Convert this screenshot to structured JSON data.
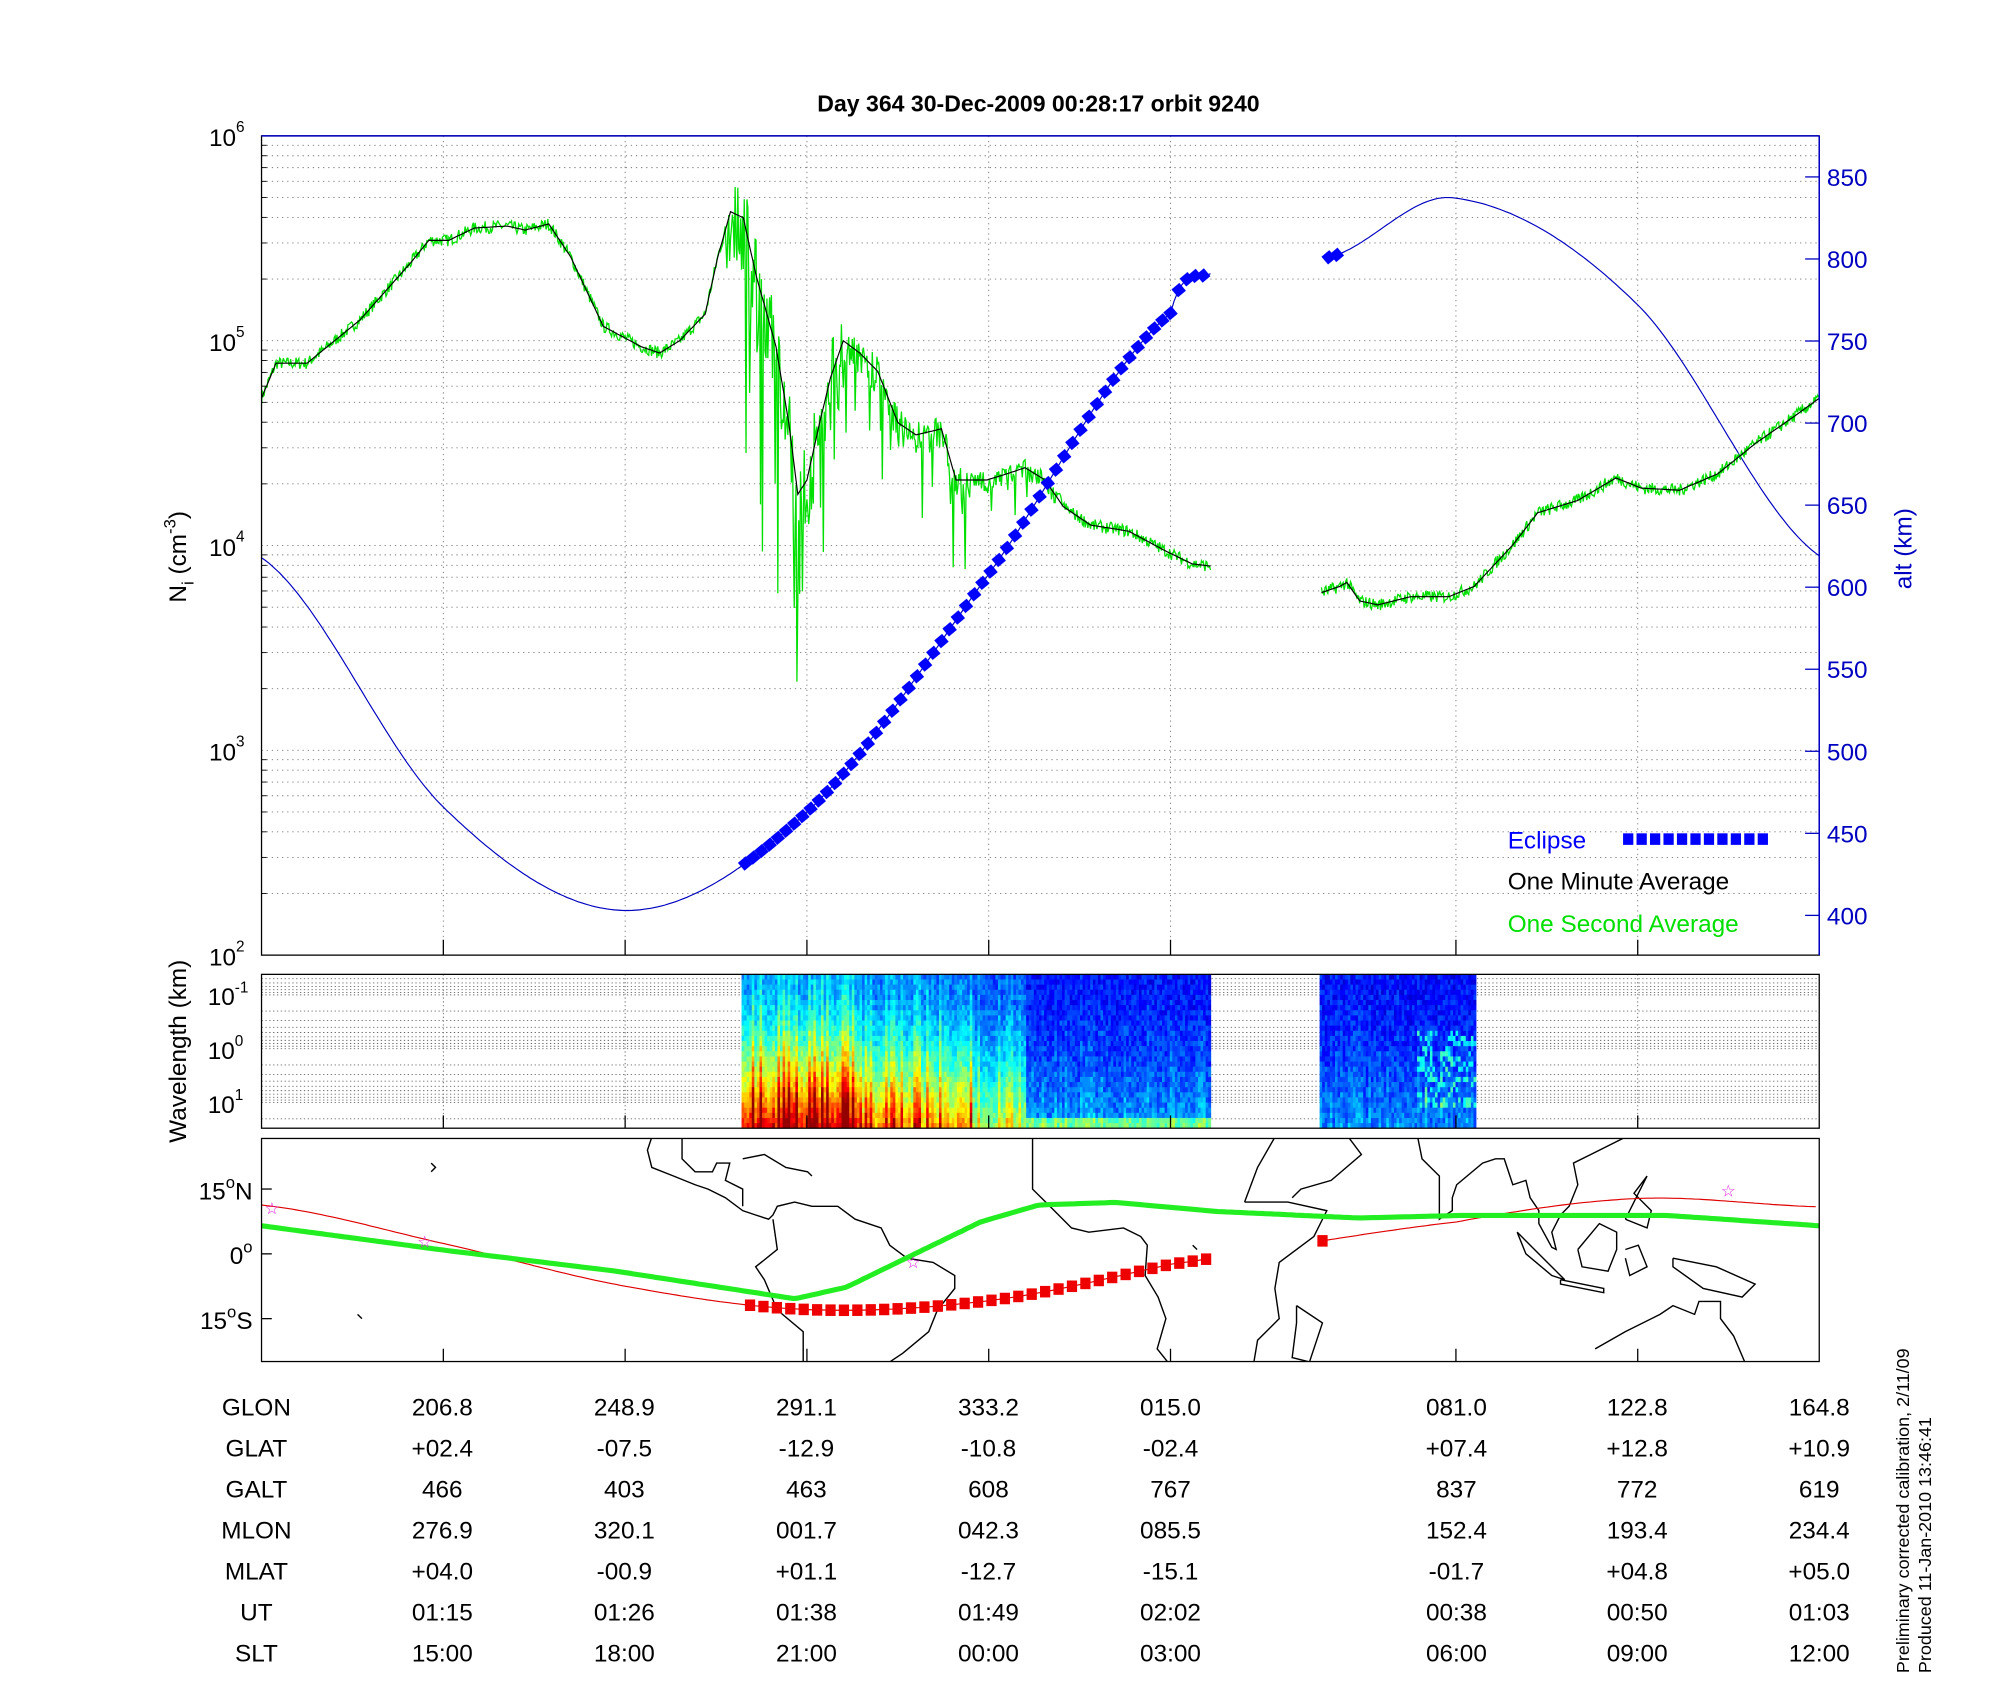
{
  "title": "Day 364  30-Dec-2009 00:28:17   orbit 9240",
  "chart_data": [
    {
      "type": "line",
      "ylabel_left": {
        "main": "N",
        "sub": "i",
        "unit": " (cm",
        "exp": "-3",
        "close": ")"
      },
      "ylabel_right": "alt (km)",
      "ylim_left_log10": [
        2,
        6
      ],
      "yticks_left": [
        {
          "base": "10",
          "exp": "2",
          "log10": 2
        },
        {
          "base": "10",
          "exp": "3",
          "log10": 3
        },
        {
          "base": "10",
          "exp": "4",
          "log10": 4
        },
        {
          "base": "10",
          "exp": "5",
          "log10": 5
        },
        {
          "base": "10",
          "exp": "6",
          "log10": 6
        }
      ],
      "ylim_right": [
        376,
        875
      ],
      "yticks_right": [
        "400",
        "450",
        "500",
        "550",
        "600",
        "650",
        "700",
        "750",
        "800",
        "850"
      ],
      "xlim": [
        0,
        8.57
      ],
      "xticks": [
        1,
        2,
        3,
        4,
        5,
        6.57,
        7.57
      ],
      "grid": true,
      "legend_placement": "bottom-right",
      "legend": [
        {
          "label": "Eclipse",
          "color": "#0000ff"
        },
        {
          "label": "One Minute Average",
          "color": "#000000"
        },
        {
          "label": "One Second Average",
          "color": "#00e000"
        }
      ],
      "one_minute": {
        "color": "#000000",
        "segments": [
          {
            "x": [
              0.0,
              0.08,
              0.25,
              0.54,
              0.82,
              0.92,
              1.03,
              1.17,
              1.35,
              1.45,
              1.58,
              1.7,
              1.88,
              2.09,
              2.19,
              2.3,
              2.44,
              2.51,
              2.58,
              2.65,
              2.72,
              2.78,
              2.83,
              2.9,
              2.95,
              3.0,
              3.07,
              3.13,
              3.2,
              3.29,
              3.39,
              3.5,
              3.6,
              3.74,
              3.82,
              3.99,
              4.1,
              4.2,
              4.31,
              4.41,
              4.56,
              4.77,
              4.98,
              5.12,
              5.22
            ],
            "log10_ni": [
              4.72,
              4.89,
              4.89,
              5.1,
              5.38,
              5.49,
              5.49,
              5.55,
              5.56,
              5.54,
              5.57,
              5.41,
              5.07,
              4.97,
              4.94,
              5.0,
              5.13,
              5.41,
              5.63,
              5.6,
              5.32,
              5.13,
              4.97,
              4.6,
              4.25,
              4.32,
              4.6,
              4.82,
              5.0,
              4.94,
              4.85,
              4.6,
              4.54,
              4.57,
              4.32,
              4.32,
              4.35,
              4.38,
              4.32,
              4.19,
              4.1,
              4.07,
              3.97,
              3.91,
              3.9
            ]
          },
          {
            "x": [
              5.83,
              5.93,
              5.97,
              6.04,
              6.14,
              6.32,
              6.53,
              6.67,
              6.88,
              7.02,
              7.24,
              7.45,
              7.59,
              7.8,
              8.01,
              8.22,
              8.43,
              8.57
            ],
            "log10_ni": [
              3.77,
              3.8,
              3.82,
              3.73,
              3.71,
              3.75,
              3.75,
              3.8,
              4.0,
              4.16,
              4.22,
              4.33,
              4.28,
              4.27,
              4.35,
              4.5,
              4.63,
              4.72
            ]
          }
        ]
      },
      "one_second": {
        "color": "#00e000",
        "noise_envelope_log10": [
          [
            2.55,
            3.2,
            0.9
          ],
          [
            3.2,
            3.9,
            0.35
          ],
          [
            3.9,
            4.4,
            0.2
          ]
        ]
      },
      "altitude": {
        "color": "#0000c0",
        "segments": [
          {
            "x": [
              0,
              1,
              2,
              3,
              4,
              5,
              5.22
            ],
            "alt_km": [
              618,
              466,
              403,
              463,
              608,
              767,
              791
            ]
          },
          {
            "x": [
              5.87,
              6.57,
              7.57,
              8.57
            ],
            "alt_km": [
              801,
              837,
              772,
              619
            ]
          }
        ]
      },
      "eclipse": {
        "color": "#0000ff",
        "x_ranges": [
          [
            2.66,
            5.22
          ],
          [
            5.87,
            5.92
          ]
        ]
      }
    },
    {
      "type": "heatmap",
      "ylabel": "Wavelength (km)",
      "yticks": [
        {
          "base": "10",
          "exp": "-1",
          "log10": -1
        },
        {
          "base": "10",
          "exp": "0",
          "log10": 0
        },
        {
          "base": "10",
          "exp": "1",
          "log10": 1
        }
      ],
      "ylim_log10": [
        -1.38,
        1.48
      ],
      "x_segments": [
        [
          2.64,
          5.22
        ],
        [
          5.82,
          6.67
        ]
      ],
      "colormap": "jet"
    },
    {
      "type": "map",
      "lon_range": [
        164.8,
        524.8
      ],
      "lat_range": [
        -25,
        26.7
      ],
      "lat_ticks": [
        {
          "label": "15",
          "deg": "o",
          "hemi": "N",
          "lat": 15
        },
        {
          "label": "0",
          "deg": "o",
          "hemi": "",
          "lat": 0
        },
        {
          "label": "15",
          "deg": "o",
          "hemi": "S",
          "lat": -15
        }
      ],
      "ground_track": {
        "color": "#e00000",
        "lon": [
          164.8,
          206.8,
          248.9,
          291.1,
          333.2,
          375.0,
          441.0,
          482.8,
          524.8
        ],
        "lat": [
          11.3,
          2.4,
          -7.5,
          -12.9,
          -10.8,
          -2.4,
          7.4,
          12.8,
          10.9
        ]
      },
      "magnetic_equator": {
        "color": "#22ee22",
        "lon": [
          164.8,
          206.6,
          246.6,
          288.1,
          300.0,
          331.0,
          344.4,
          362.1,
          385.8,
          418.4,
          442.1,
          489.5,
          524.8
        ],
        "lat": [
          6.5,
          0.9,
          -4.0,
          -10.4,
          -7.7,
          7.4,
          11.3,
          11.9,
          9.8,
          8.3,
          8.9,
          8.9,
          6.5
        ]
      },
      "star_markers": {
        "color": "#e020e0",
        "lon": [
          167.2,
          202.5,
          315.4,
          503.8
        ],
        "lat": [
          10.7,
          3.0,
          -1.8,
          14.8
        ]
      },
      "eclipse": {
        "color": "#ee0000",
        "lon_ranges": [
          [
            277.7,
            384.0
          ],
          [
            410.0,
            411.5
          ]
        ]
      }
    }
  ],
  "table": {
    "rows": [
      {
        "label": "GLON",
        "values": [
          "206.8",
          "248.9",
          "291.1",
          "333.2",
          "015.0",
          "081.0",
          "122.8",
          "164.8"
        ]
      },
      {
        "label": "GLAT",
        "values": [
          "+02.4",
          "-07.5",
          "-12.9",
          "-10.8",
          "-02.4",
          "+07.4",
          "+12.8",
          "+10.9"
        ]
      },
      {
        "label": "GALT",
        "values": [
          "466",
          "403",
          "463",
          "608",
          "767",
          "837",
          "772",
          "619"
        ]
      },
      {
        "label": "MLON",
        "values": [
          "276.9",
          "320.1",
          "001.7",
          "042.3",
          "085.5",
          "152.4",
          "193.4",
          "234.4"
        ]
      },
      {
        "label": "MLAT",
        "values": [
          "+04.0",
          "-00.9",
          "+01.1",
          "-12.7",
          "-15.1",
          "-01.7",
          "+04.8",
          "+05.0"
        ]
      },
      {
        "label": "UT",
        "values": [
          "01:15",
          "01:26",
          "01:38",
          "01:49",
          "02:02",
          "00:38",
          "00:50",
          "01:03"
        ]
      },
      {
        "label": "SLT",
        "values": [
          "15:00",
          "18:00",
          "21:00",
          "00:00",
          "03:00",
          "06:00",
          "09:00",
          "12:00"
        ]
      }
    ]
  },
  "footer": {
    "line1": "Preliminary corrected calibration, 2/11/09",
    "line2": "Produced 11-Jan-2010 13:46:41"
  }
}
